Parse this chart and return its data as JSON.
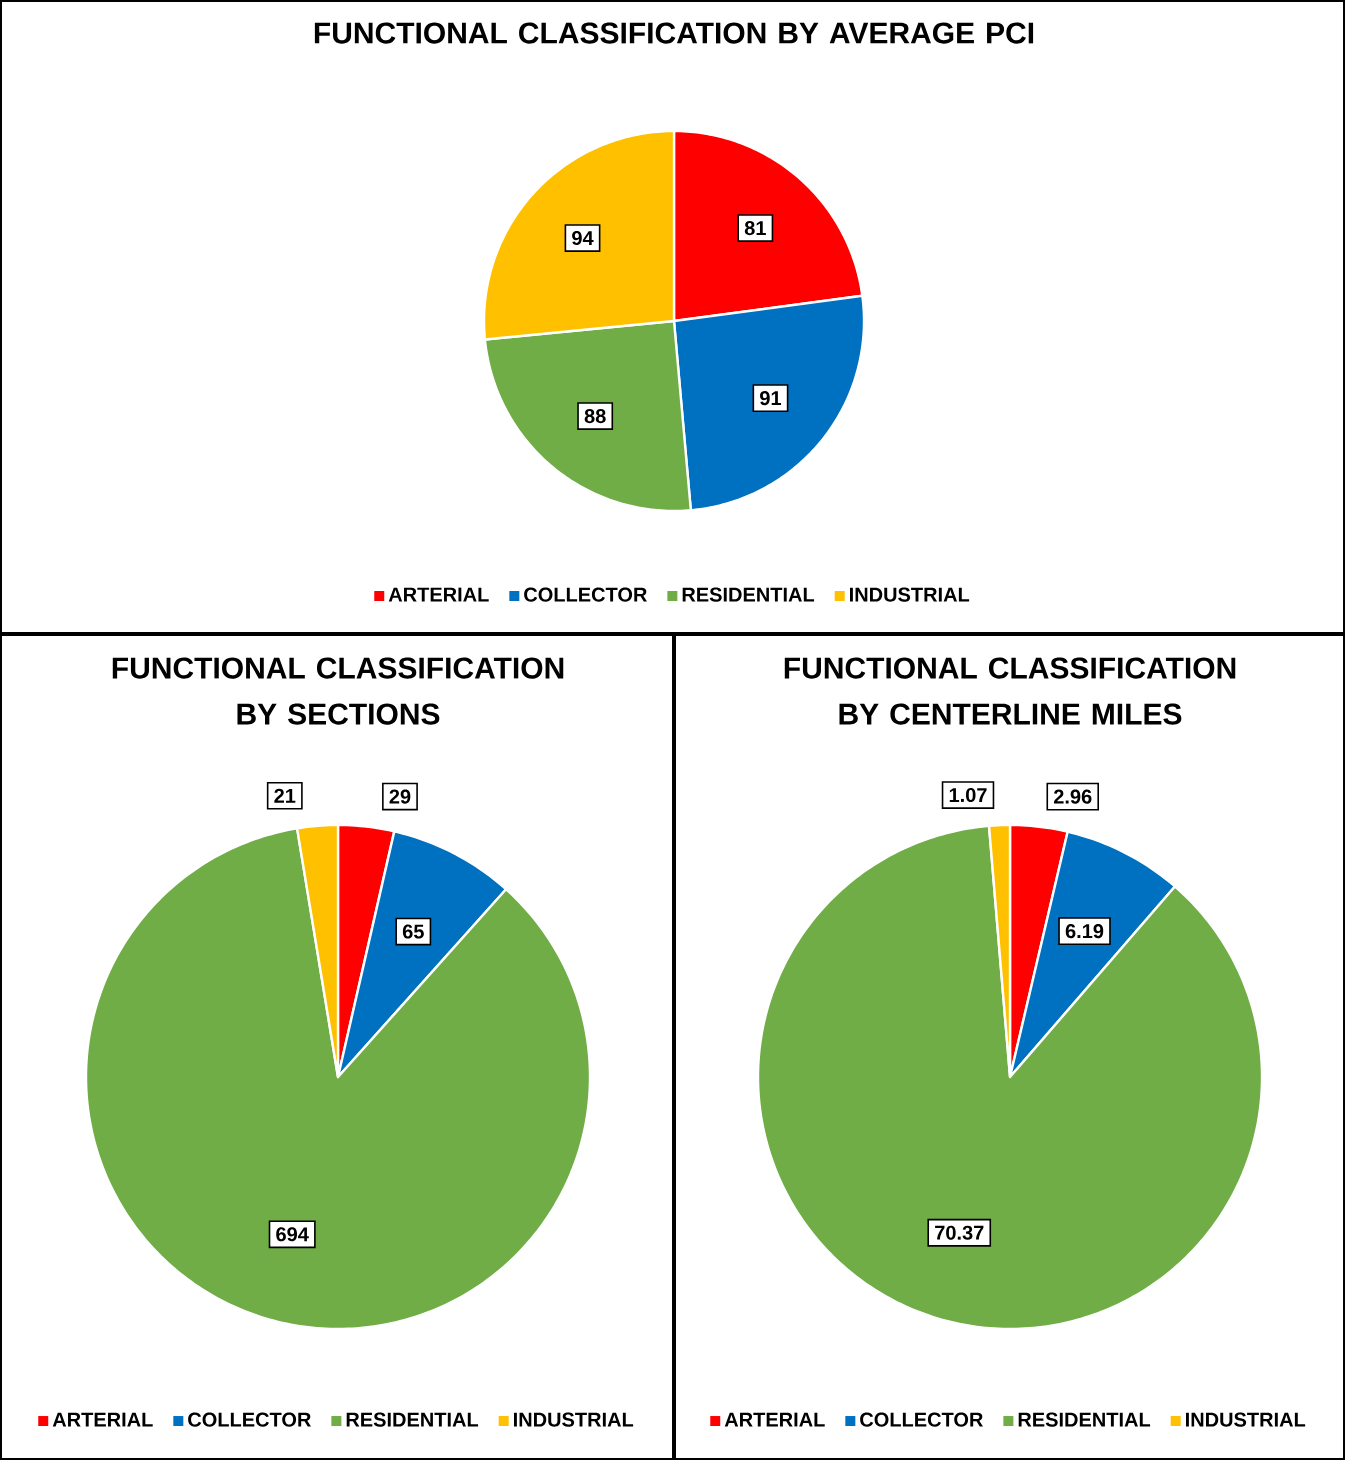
{
  "chart_data": [
    {
      "type": "pie",
      "title": "FUNCTIONAL CLASSIFICATION BY AVERAGE PCI",
      "categories": [
        "ARTERIAL",
        "COLLECTOR",
        "RESIDENTIAL",
        "INDUSTRIAL"
      ],
      "values": [
        81,
        91,
        88,
        94
      ],
      "colors": [
        "#ff0000",
        "#0070c0",
        "#70ad47",
        "#ffc000"
      ],
      "data_labels": true,
      "legend": "bottom"
    },
    {
      "type": "pie",
      "title": "FUNCTIONAL CLASSIFICATION BY SECTIONS",
      "categories": [
        "ARTERIAL",
        "COLLECTOR",
        "RESIDENTIAL",
        "INDUSTRIAL"
      ],
      "values": [
        29,
        65,
        694,
        21
      ],
      "colors": [
        "#ff0000",
        "#0070c0",
        "#70ad47",
        "#ffc000"
      ],
      "data_labels": true,
      "legend": "bottom"
    },
    {
      "type": "pie",
      "title": "FUNCTIONAL CLASSIFICATION BY CENTERLINE MILES",
      "categories": [
        "ARTERIAL",
        "COLLECTOR",
        "RESIDENTIAL",
        "INDUSTRIAL"
      ],
      "values": [
        2.96,
        6.19,
        70.37,
        1.07
      ],
      "colors": [
        "#ff0000",
        "#0070c0",
        "#70ad47",
        "#ffc000"
      ],
      "data_labels": true,
      "legend": "bottom"
    }
  ]
}
